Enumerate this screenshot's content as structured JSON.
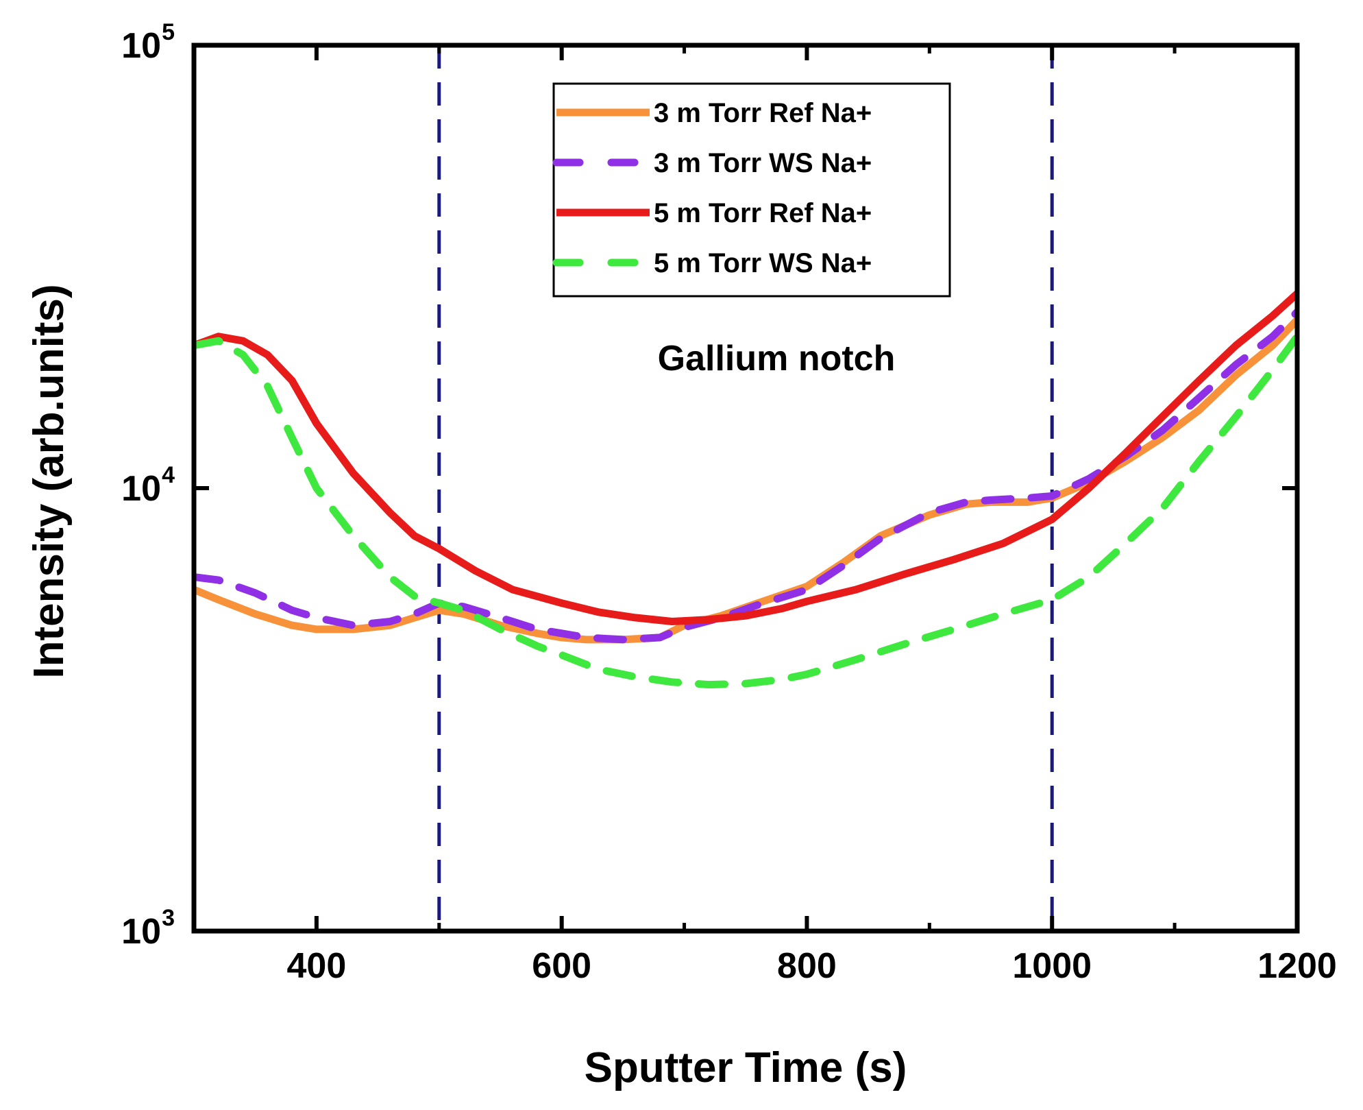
{
  "chart_data": {
    "type": "line",
    "title": "",
    "xlabel": "Sputter Time (s)",
    "ylabel": "Intensity (arb.units)",
    "xlim": [
      300,
      1200
    ],
    "ylim": [
      1000,
      100000
    ],
    "yscale": "log",
    "x_ticks": [
      400,
      600,
      800,
      1000,
      1200
    ],
    "x_tick_labels": [
      "400",
      "600",
      "800",
      "1000",
      "1200"
    ],
    "y_ticks": [
      1000,
      10000,
      100000
    ],
    "y_tick_labels": [
      {
        "base": "10",
        "exp": "3"
      },
      {
        "base": "10",
        "exp": "4"
      },
      {
        "base": "10",
        "exp": "5"
      }
    ],
    "grid": false,
    "legend_position": "top-center",
    "annotations": [
      {
        "text": "Gallium notch",
        "x": 750,
        "y": 19000
      }
    ],
    "vlines": [
      {
        "x": 500,
        "color": "#1a1a7a",
        "style": "dashed"
      },
      {
        "x": 1000,
        "color": "#1a1a7a",
        "style": "dashed"
      }
    ],
    "series": [
      {
        "name": "3 m Torr Ref Na+",
        "color": "#f7923a",
        "style": "solid",
        "x": [
          300,
          320,
          350,
          380,
          400,
          430,
          460,
          480,
          500,
          520,
          550,
          580,
          600,
          620,
          650,
          680,
          700,
          730,
          760,
          800,
          830,
          860,
          900,
          930,
          950,
          980,
          1000,
          1030,
          1060,
          1090,
          1120,
          1150,
          1180,
          1200
        ],
        "y": [
          5900,
          5600,
          5200,
          4900,
          4800,
          4800,
          4900,
          5100,
          5300,
          5200,
          4900,
          4700,
          4600,
          4550,
          4550,
          4600,
          4900,
          5150,
          5500,
          6000,
          6800,
          7800,
          8700,
          9200,
          9300,
          9300,
          9500,
          10300,
          11500,
          13000,
          15000,
          18000,
          21000,
          24000
        ]
      },
      {
        "name": "3 m Torr WS Na+",
        "color": "#8f2fe6",
        "style": "dashed",
        "x": [
          300,
          320,
          350,
          380,
          400,
          430,
          460,
          480,
          500,
          520,
          550,
          580,
          600,
          620,
          650,
          680,
          700,
          730,
          760,
          800,
          830,
          860,
          900,
          930,
          950,
          980,
          1000,
          1030,
          1060,
          1090,
          1120,
          1150,
          1180,
          1200
        ],
        "y": [
          6300,
          6200,
          5800,
          5300,
          5100,
          4900,
          5000,
          5200,
          5500,
          5400,
          5100,
          4800,
          4700,
          4600,
          4550,
          4600,
          4850,
          5100,
          5450,
          5900,
          6700,
          7700,
          8800,
          9300,
          9400,
          9500,
          9600,
          10500,
          11800,
          13500,
          16000,
          19000,
          22000,
          25000
        ]
      },
      {
        "name": "5 m Torr Ref Na+",
        "color": "#e81b1b",
        "style": "solid",
        "x": [
          300,
          320,
          340,
          360,
          380,
          400,
          430,
          460,
          480,
          500,
          530,
          560,
          600,
          630,
          660,
          690,
          720,
          750,
          780,
          800,
          840,
          880,
          920,
          960,
          1000,
          1030,
          1060,
          1090,
          1120,
          1150,
          1180,
          1200
        ],
        "y": [
          21000,
          22000,
          21500,
          20000,
          17500,
          14000,
          10800,
          8800,
          7800,
          7300,
          6500,
          5900,
          5500,
          5250,
          5100,
          5000,
          5050,
          5150,
          5350,
          5550,
          5900,
          6400,
          6900,
          7500,
          8500,
          10000,
          12000,
          14500,
          17500,
          21000,
          24500,
          27500
        ]
      },
      {
        "name": "5 m Torr WS Na+",
        "color": "#3ee83e",
        "style": "dashed",
        "x": [
          300,
          320,
          340,
          360,
          380,
          400,
          430,
          460,
          480,
          500,
          520,
          550,
          580,
          600,
          630,
          660,
          690,
          720,
          750,
          780,
          800,
          840,
          880,
          920,
          960,
          1000,
          1030,
          1060,
          1090,
          1120,
          1150,
          1180,
          1200
        ],
        "y": [
          21000,
          21500,
          20000,
          17000,
          13000,
          10000,
          7800,
          6300,
          5700,
          5500,
          5300,
          4800,
          4400,
          4200,
          3900,
          3750,
          3650,
          3600,
          3620,
          3700,
          3800,
          4100,
          4450,
          4800,
          5200,
          5600,
          6300,
          7500,
          9000,
          11500,
          14500,
          18500,
          22000
        ]
      }
    ]
  }
}
